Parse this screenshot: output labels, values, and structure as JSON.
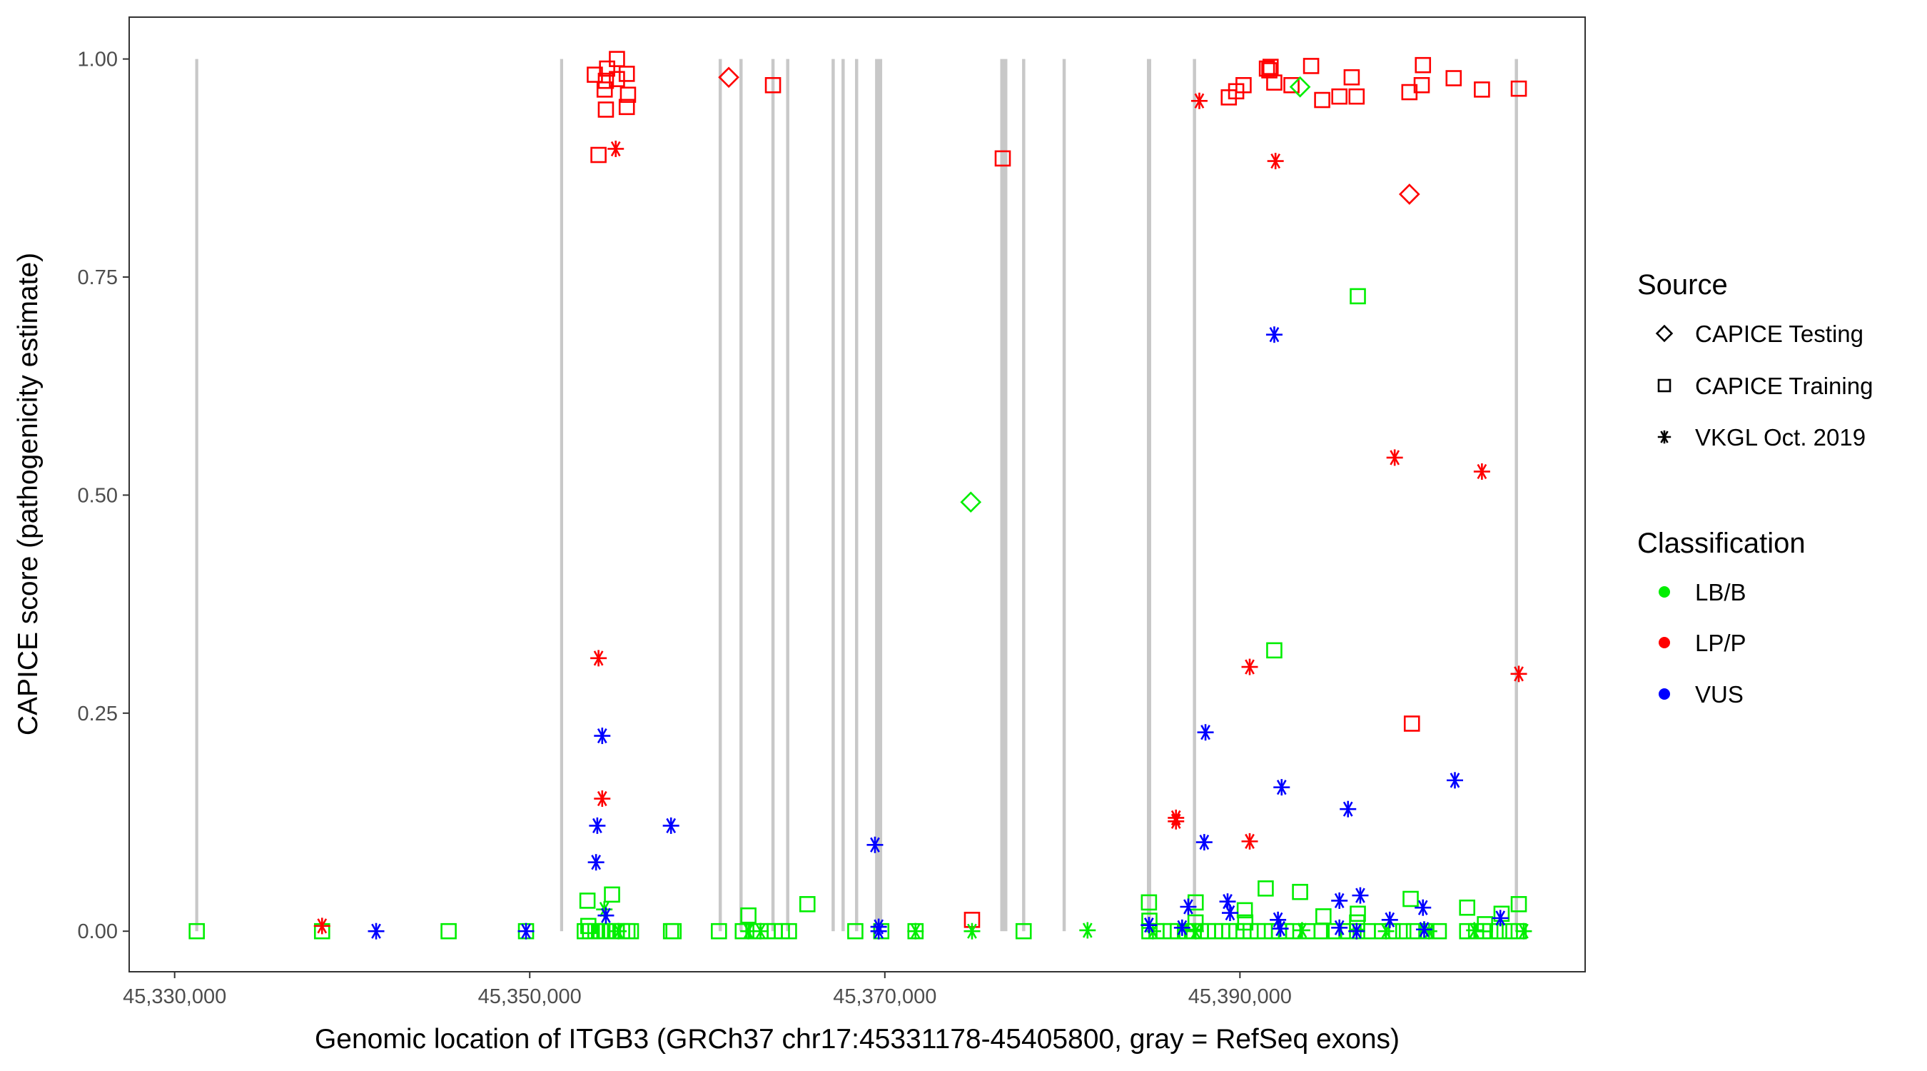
{
  "chart_data": {
    "type": "scatter",
    "title": "",
    "xlabel": "Genomic location of ITGB3 (GRCh37 chr17:45331178-45405800, gray = RefSeq exons)",
    "ylabel": "CAPICE score (pathogenicity estimate)",
    "xlim": [
      45327440,
      45409442
    ],
    "ylim": [
      -0.0465,
      1.048
    ],
    "x_ticks": [
      45330000,
      45350000,
      45370000,
      45390000
    ],
    "x_tick_labels": [
      "45,330,000",
      "45,350,000",
      "45,370,000",
      "45,390,000"
    ],
    "y_ticks": [
      0,
      0.25,
      0.5,
      0.75,
      1.0
    ],
    "y_tick_labels": [
      "0.00",
      "0.25",
      "0.50",
      "0.75",
      "1.00"
    ],
    "grid": false,
    "legend_placement": "right",
    "legend": {
      "source_title": "Source",
      "sources": [
        {
          "label": "CAPICE Testing",
          "shape": "diamond"
        },
        {
          "label": "CAPICE Training",
          "shape": "square"
        },
        {
          "label": "VKGL Oct. 2019",
          "shape": "asterisk"
        }
      ],
      "class_title": "Classification",
      "classes": [
        {
          "label": "LB/B",
          "color": "#00ee00"
        },
        {
          "label": "LP/P",
          "color": "#ff0000"
        },
        {
          "label": "VUS",
          "color": "#0000ff"
        }
      ]
    },
    "exon_color": "#c8c8c8",
    "exons": [
      [
        45331160,
        45331330
      ],
      [
        45351710,
        45351880
      ],
      [
        45360640,
        45360820
      ],
      [
        45361810,
        45361990
      ],
      [
        45363610,
        45363790
      ],
      [
        45364440,
        45364620
      ],
      [
        45367000,
        45367180
      ],
      [
        45367560,
        45367740
      ],
      [
        45368320,
        45368500
      ],
      [
        45369450,
        45369850
      ],
      [
        45376500,
        45376900
      ],
      [
        45377730,
        45377910
      ],
      [
        45380010,
        45380190
      ],
      [
        45384760,
        45385000
      ],
      [
        45387350,
        45387530
      ],
      [
        45405480,
        45405660
      ]
    ],
    "series": [
      {
        "source": "CAPICE Training",
        "class": "LP/P",
        "points": [
          [
            45353666,
            0.982
          ],
          [
            45354358,
            0.989
          ],
          [
            45354912,
            1.0
          ],
          [
            45355466,
            0.983
          ],
          [
            45354289,
            0.975
          ],
          [
            45354220,
            0.965
          ],
          [
            45355535,
            0.959
          ],
          [
            45355466,
            0.945
          ],
          [
            45354289,
            0.942
          ],
          [
            45354912,
            0.977
          ],
          [
            45353874,
            0.89
          ],
          [
            45363700,
            0.97
          ],
          [
            45376641,
            0.886
          ],
          [
            45374911,
            0.013
          ],
          [
            45389374,
            0.956
          ],
          [
            45389789,
            0.963
          ],
          [
            45390204,
            0.97
          ],
          [
            45391519,
            0.989
          ],
          [
            45391726,
            0.991
          ],
          [
            45391934,
            0.973
          ],
          [
            45391657,
            0.987
          ],
          [
            45392903,
            0.97
          ],
          [
            45394010,
            0.992
          ],
          [
            45394633,
            0.953
          ],
          [
            45395602,
            0.957
          ],
          [
            45396294,
            0.979
          ],
          [
            45396570,
            0.957
          ],
          [
            45399546,
            0.962
          ],
          [
            45400238,
            0.97
          ],
          [
            45400307,
            0.993
          ],
          [
            45402037,
            0.978
          ],
          [
            45403629,
            0.965
          ],
          [
            45405705,
            0.966
          ],
          [
            45399684,
            0.238
          ]
        ]
      },
      {
        "source": "CAPICE Testing",
        "class": "LP/P",
        "points": [
          [
            45361209,
            0.979
          ],
          [
            45399546,
            0.845
          ]
        ]
      },
      {
        "source": "CAPICE Testing",
        "class": "LB/B",
        "points": [
          [
            45374842,
            0.492
          ],
          [
            45393387,
            0.968
          ]
        ]
      },
      {
        "source": "CAPICE Training",
        "class": "LB/B",
        "points": [
          [
            45331246,
            0
          ],
          [
            45338304,
            0
          ],
          [
            45345432,
            0
          ],
          [
            45349791,
            0
          ],
          [
            45353251,
            0.035
          ],
          [
            45354635,
            0.042
          ],
          [
            45357957,
            0
          ],
          [
            45358100,
            0
          ],
          [
            45360656,
            0
          ],
          [
            45362316,
            0.018
          ],
          [
            45365638,
            0.031
          ],
          [
            45368337,
            0
          ],
          [
            45371728,
            0
          ],
          [
            45377817,
            0
          ],
          [
            45396640,
            0.728
          ],
          [
            45391934,
            0.322
          ],
          [
            45384876,
            0.033
          ],
          [
            45387505,
            0.033
          ],
          [
            45391450,
            0.049
          ],
          [
            45393387,
            0.045
          ],
          [
            45399615,
            0.037
          ],
          [
            45402798,
            0.027
          ],
          [
            45405705,
            0.031
          ],
          [
            45394702,
            0.017
          ],
          [
            45390273,
            0.024
          ],
          [
            45396640,
            0.02
          ],
          [
            45404736,
            0.02
          ],
          [
            45353300,
            0.006
          ],
          [
            45384900,
            0.012
          ],
          [
            45387500,
            0.01
          ],
          [
            45390300,
            0.01
          ],
          [
            45396600,
            0.01
          ],
          [
            45403800,
            0.008
          ],
          [
            45353100,
            0
          ],
          [
            45353400,
            0
          ],
          [
            45353700,
            0
          ],
          [
            45354000,
            0
          ],
          [
            45354300,
            0
          ],
          [
            45354600,
            0
          ],
          [
            45354900,
            0
          ],
          [
            45355200,
            0
          ],
          [
            45355500,
            0
          ],
          [
            45355700,
            0
          ],
          [
            45362000,
            0
          ],
          [
            45362600,
            0
          ],
          [
            45363000,
            0
          ],
          [
            45363400,
            0
          ],
          [
            45363800,
            0
          ],
          [
            45364200,
            0
          ],
          [
            45364600,
            0
          ],
          [
            45369800,
            0
          ],
          [
            45384900,
            0
          ],
          [
            45385300,
            0
          ],
          [
            45385700,
            0
          ],
          [
            45386100,
            0
          ],
          [
            45386500,
            0
          ],
          [
            45387000,
            0
          ],
          [
            45387400,
            0
          ],
          [
            45387800,
            0
          ],
          [
            45388200,
            0
          ],
          [
            45388600,
            0
          ],
          [
            45389000,
            0
          ],
          [
            45389400,
            0
          ],
          [
            45389800,
            0
          ],
          [
            45390200,
            0
          ],
          [
            45390600,
            0
          ],
          [
            45391000,
            0
          ],
          [
            45391400,
            0
          ],
          [
            45391800,
            0
          ],
          [
            45392200,
            0
          ],
          [
            45392600,
            0
          ],
          [
            45393000,
            0
          ],
          [
            45393800,
            0
          ],
          [
            45394600,
            0
          ],
          [
            45395300,
            0
          ],
          [
            45396000,
            0
          ],
          [
            45396600,
            0
          ],
          [
            45397200,
            0
          ],
          [
            45398000,
            0
          ],
          [
            45398600,
            0
          ],
          [
            45399200,
            0
          ],
          [
            45399800,
            0
          ],
          [
            45400500,
            0
          ],
          [
            45401200,
            0
          ],
          [
            45402800,
            0
          ],
          [
            45403300,
            0
          ],
          [
            45403700,
            0
          ],
          [
            45404100,
            0
          ],
          [
            45404600,
            0
          ],
          [
            45405200,
            0
          ],
          [
            45405700,
            0
          ]
        ]
      },
      {
        "source": "VKGL Oct. 2019",
        "class": "LB/B",
        "points": [
          [
            45354200,
            0.025
          ],
          [
            45362316,
            0
          ],
          [
            45371728,
            0
          ],
          [
            45374911,
            0
          ],
          [
            45381416,
            0.001
          ],
          [
            45387505,
            0
          ],
          [
            45398231,
            0
          ],
          [
            45400653,
            0
          ],
          [
            45405982,
            0
          ],
          [
            45355000,
            0
          ],
          [
            45363000,
            0
          ],
          [
            45385100,
            0
          ],
          [
            45393500,
            0.001
          ],
          [
            45403200,
            0.001
          ]
        ]
      },
      {
        "source": "VKGL Oct. 2019",
        "class": "LP/P",
        "points": [
          [
            45338304,
            0.006
          ],
          [
            45354843,
            0.897
          ],
          [
            45353874,
            0.313
          ],
          [
            45354082,
            0.152
          ],
          [
            45387713,
            0.952
          ],
          [
            45392003,
            0.883
          ],
          [
            45398716,
            0.543
          ],
          [
            45403629,
            0.527
          ],
          [
            45390550,
            0.303
          ],
          [
            45390550,
            0.103
          ],
          [
            45386398,
            0.13
          ],
          [
            45386398,
            0.126
          ],
          [
            45405705,
            0.295
          ]
        ]
      },
      {
        "source": "VKGL Oct. 2019",
        "class": "VUS",
        "points": [
          [
            45341349,
            0
          ],
          [
            45349791,
            0
          ],
          [
            45353805,
            0.121
          ],
          [
            45354082,
            0.224
          ],
          [
            45353735,
            0.079
          ],
          [
            45354289,
            0.018
          ],
          [
            45357957,
            0.121
          ],
          [
            45369444,
            0.099
          ],
          [
            45369652,
            0.005
          ],
          [
            45369652,
            0
          ],
          [
            45391934,
            0.684
          ],
          [
            45388059,
            0.228
          ],
          [
            45392349,
            0.165
          ],
          [
            45396086,
            0.14
          ],
          [
            45402106,
            0.173
          ],
          [
            45387990,
            0.102
          ],
          [
            45384876,
            0.007
          ],
          [
            45387090,
            0.028
          ],
          [
            45389304,
            0.034
          ],
          [
            45389443,
            0.021
          ],
          [
            45392142,
            0.013
          ],
          [
            45392280,
            0.003
          ],
          [
            45395602,
            0.035
          ],
          [
            45396778,
            0.041
          ],
          [
            45398439,
            0.013
          ],
          [
            45400307,
            0.027
          ],
          [
            45400376,
            0.002
          ],
          [
            45404667,
            0.015
          ],
          [
            45395602,
            0.004
          ],
          [
            45396570,
            0
          ],
          [
            45386744,
            0.004
          ]
        ]
      }
    ]
  }
}
